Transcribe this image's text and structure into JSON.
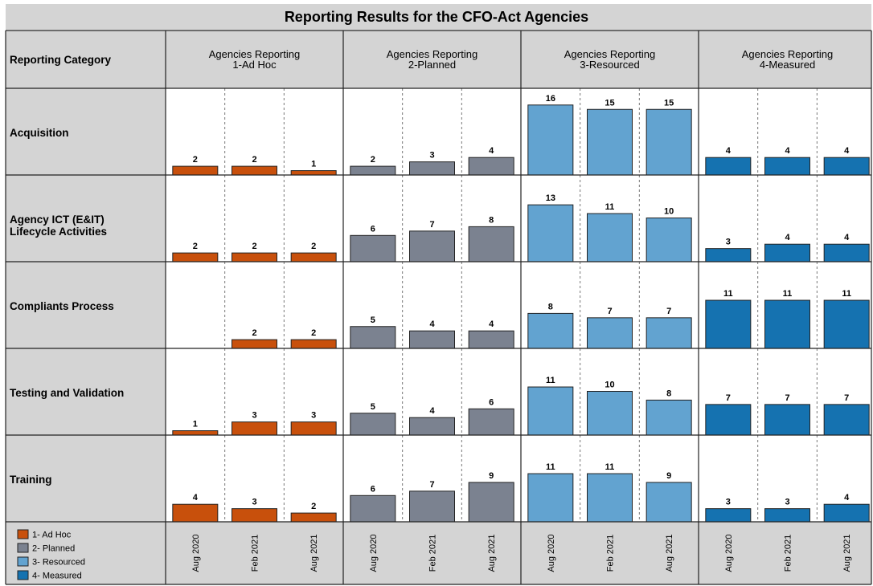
{
  "chart_data": {
    "type": "bar",
    "title": "Reporting Results for the CFO-Act Agencies",
    "row_header": "Reporting Category",
    "column_group_prefix": "Agencies Reporting",
    "groups": [
      "1-Ad Hoc",
      "2-Planned",
      "3-Resourced",
      "4-Measured"
    ],
    "periods": [
      "Aug 2020",
      "Feb 2021",
      "Aug 2021"
    ],
    "categories": [
      "Acquisition",
      "Agency ICT (E&IT) Lifecycle Activities",
      "Compliants Process",
      "Testing and Validation",
      "Training"
    ],
    "values": [
      [
        [
          2,
          2,
          1
        ],
        [
          2,
          3,
          4
        ],
        [
          16,
          15,
          15
        ],
        [
          4,
          4,
          4
        ]
      ],
      [
        [
          2,
          2,
          2
        ],
        [
          6,
          7,
          8
        ],
        [
          13,
          11,
          10
        ],
        [
          3,
          4,
          4
        ]
      ],
      [
        [
          null,
          2,
          2
        ],
        [
          5,
          4,
          4
        ],
        [
          8,
          7,
          7
        ],
        [
          11,
          11,
          11
        ]
      ],
      [
        [
          1,
          3,
          3
        ],
        [
          5,
          4,
          6
        ],
        [
          11,
          10,
          8
        ],
        [
          7,
          7,
          7
        ]
      ],
      [
        [
          4,
          3,
          2
        ],
        [
          6,
          7,
          9
        ],
        [
          11,
          11,
          9
        ],
        [
          3,
          3,
          4
        ]
      ]
    ],
    "colors": [
      "#c8500c",
      "#7b8290",
      "#62a3d0",
      "#1572b0"
    ],
    "legend": [
      "1- Ad Hoc",
      "2- Planned",
      "3- Resourced",
      "4- Measured"
    ],
    "legend_placement": "bottom-left",
    "ylim": [
      0,
      20
    ],
    "grid": true
  }
}
